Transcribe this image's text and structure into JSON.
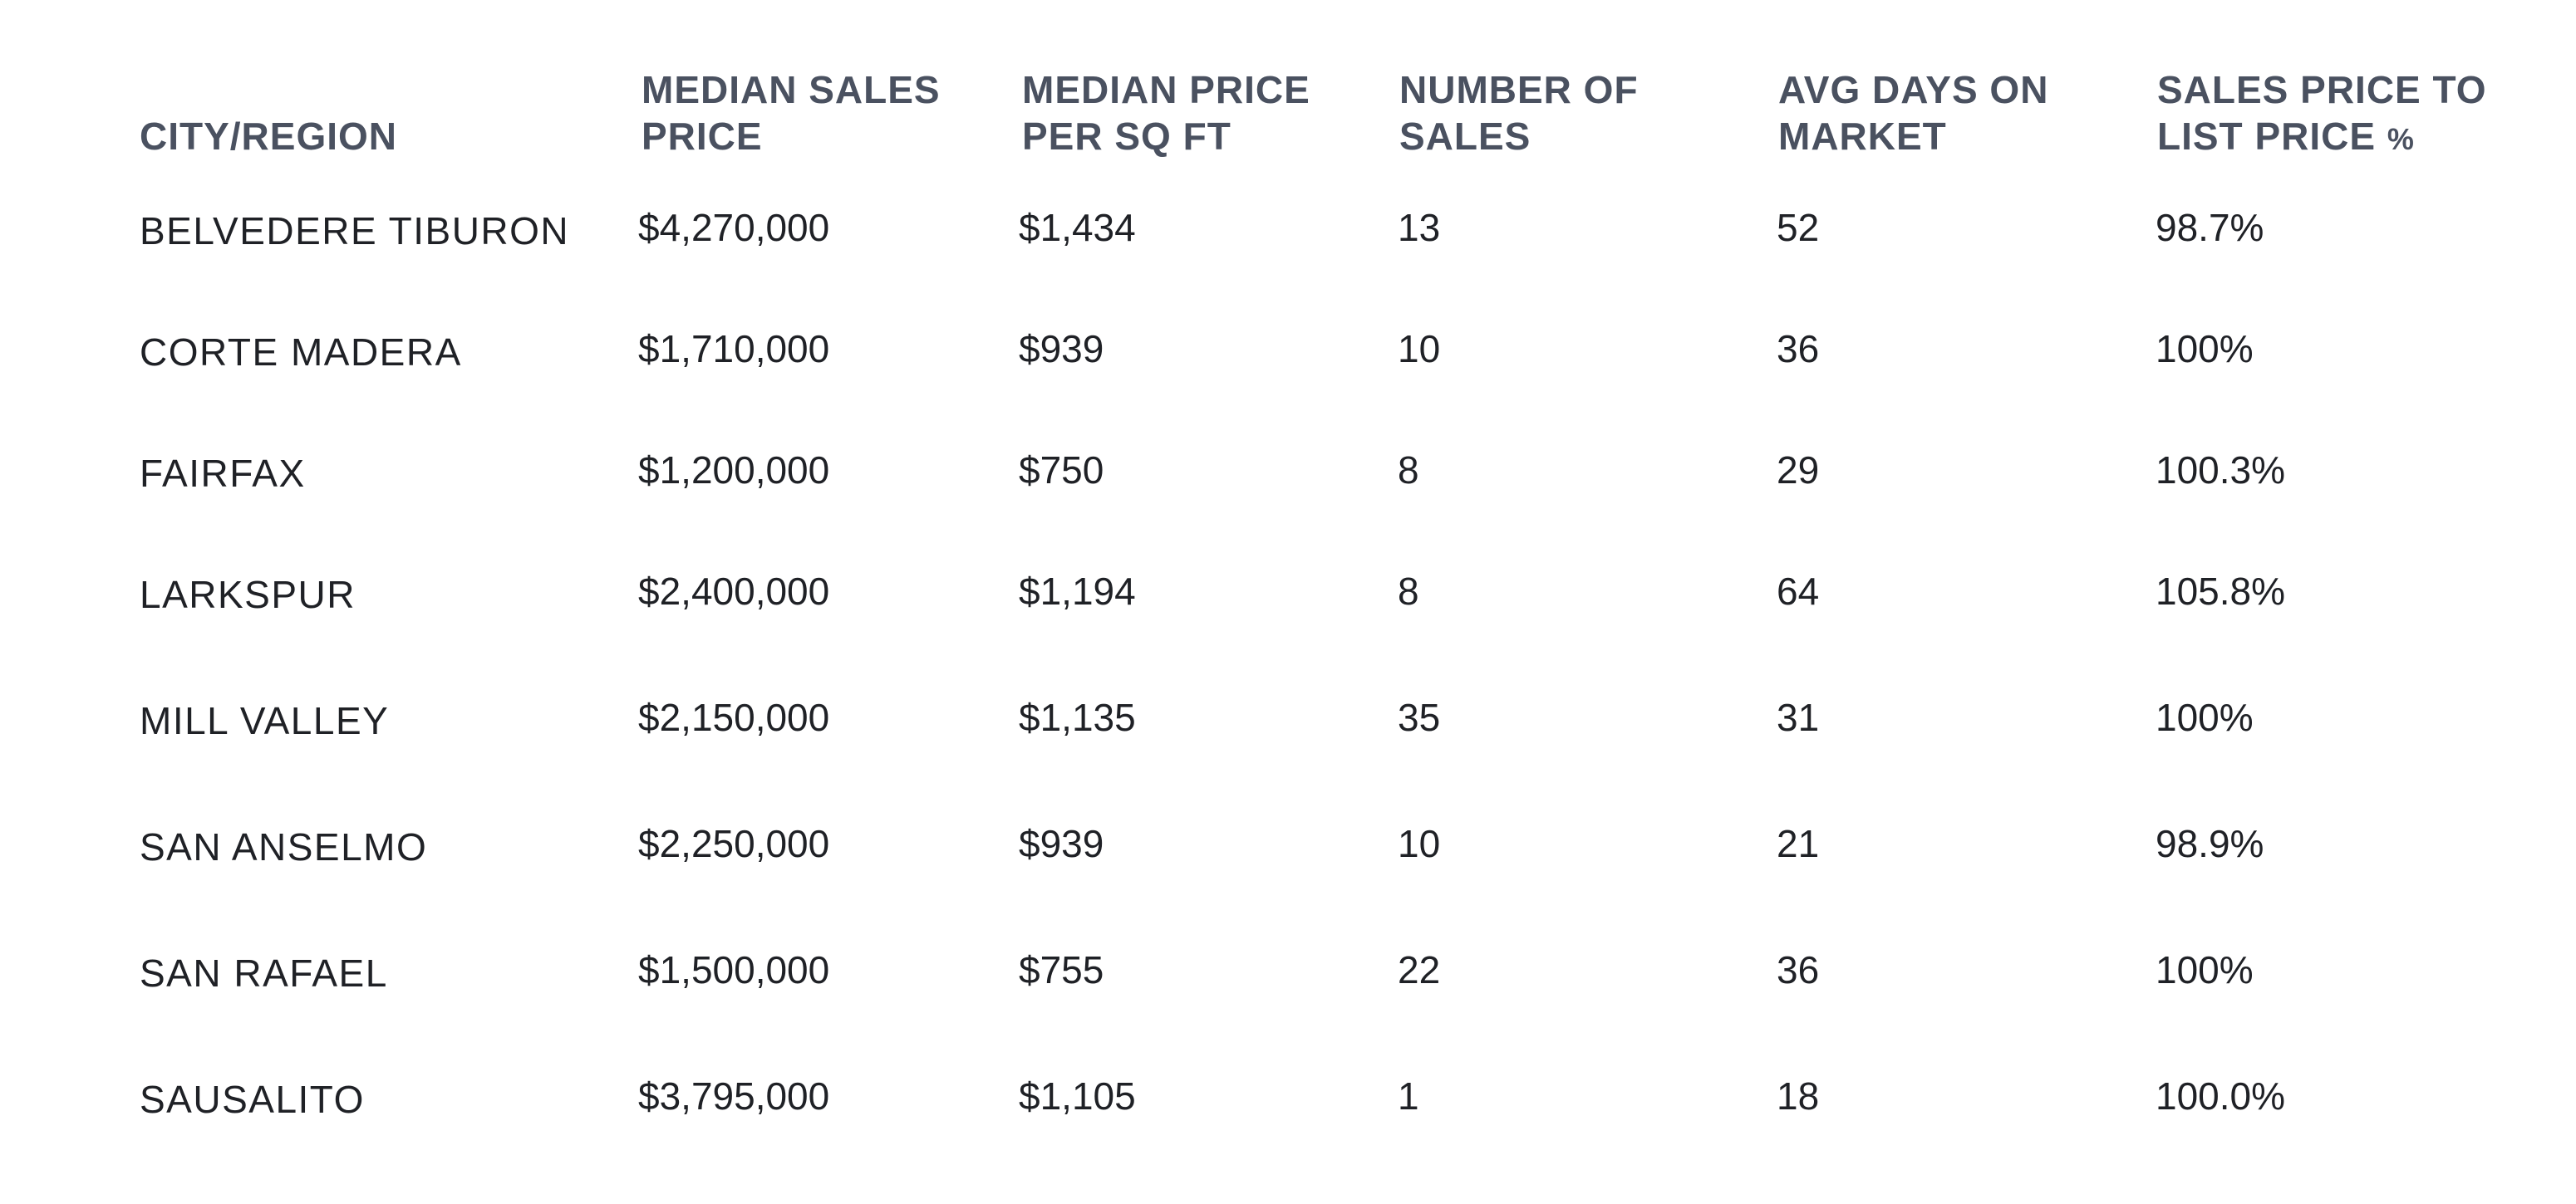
{
  "colors": {
    "header_text": "#4a5160",
    "body_text": "#1f2126",
    "background": "#ffffff"
  },
  "table": {
    "headers": {
      "city": "CITY/REGION",
      "median_price_line1": "MEDIAN SALES",
      "median_price_line2": "PRICE",
      "price_sqft_line1": "MEDIAN PRICE",
      "price_sqft_line2": "PER SQ FT",
      "num_sales_line1": "NUMBER OF",
      "num_sales_line2": "SALES",
      "days_line1": "AVG DAYS ON",
      "days_line2": "MARKET",
      "ratio_line1": "SALES PRICE TO",
      "ratio_line2": "LIST PRICE",
      "ratio_pct": "%"
    },
    "rows": [
      {
        "city": "BELVEDERE TIBURON",
        "median_price": "$4,270,000",
        "price_sqft": "$1,434",
        "num_sales": "13",
        "days": "52",
        "ratio": "98.7%"
      },
      {
        "city": "CORTE MADERA",
        "median_price": "$1,710,000",
        "price_sqft": "$939",
        "num_sales": "10",
        "days": "36",
        "ratio": "100%"
      },
      {
        "city": "FAIRFAX",
        "median_price": "$1,200,000",
        "price_sqft": "$750",
        "num_sales": "8",
        "days": "29",
        "ratio": "100.3%"
      },
      {
        "city": "LARKSPUR",
        "median_price": "$2,400,000",
        "price_sqft": "$1,194",
        "num_sales": "8",
        "days": "64",
        "ratio": "105.8%"
      },
      {
        "city": "MILL VALLEY",
        "median_price": "$2,150,000",
        "price_sqft": "$1,135",
        "num_sales": "35",
        "days": "31",
        "ratio": "100%"
      },
      {
        "city": "SAN ANSELMO",
        "median_price": "$2,250,000",
        "price_sqft": "$939",
        "num_sales": "10",
        "days": "21",
        "ratio": "98.9%"
      },
      {
        "city": "SAN RAFAEL",
        "median_price": "$1,500,000",
        "price_sqft": "$755",
        "num_sales": "22",
        "days": "36",
        "ratio": "100%"
      },
      {
        "city": "SAUSALITO",
        "median_price": "$3,795,000",
        "price_sqft": "$1,105",
        "num_sales": "1",
        "days": "18",
        "ratio": "100.0%"
      }
    ]
  }
}
